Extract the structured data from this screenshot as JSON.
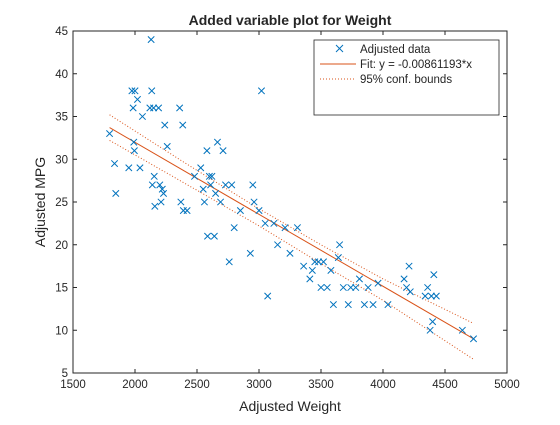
{
  "chart_data": {
    "type": "scatter",
    "title": "Added variable plot for Weight",
    "xlabel": "Adjusted Weight",
    "ylabel": "Adjusted MPG",
    "xlim": [
      1500,
      5000
    ],
    "ylim": [
      5,
      45
    ],
    "xticks": [
      1500,
      2000,
      2500,
      3000,
      3500,
      4000,
      4500,
      5000
    ],
    "yticks": [
      5,
      10,
      15,
      20,
      25,
      30,
      35,
      40,
      45
    ],
    "grid": false,
    "legend_position": "top-right",
    "legend": [
      "Adjusted data",
      "Fit: y = -0.00861193*x",
      "95% conf. bounds"
    ],
    "series": [
      {
        "name": "Adjusted data",
        "kind": "scatter",
        "marker": "x",
        "color": "#0072BD",
        "points": [
          [
            1795,
            33
          ],
          [
            1835,
            29.5
          ],
          [
            1845,
            26
          ],
          [
            1950,
            29
          ],
          [
            1975,
            38
          ],
          [
            1985,
            36
          ],
          [
            1990,
            32
          ],
          [
            1995,
            31
          ],
          [
            2000,
            38
          ],
          [
            2020,
            37
          ],
          [
            2040,
            29
          ],
          [
            2060,
            35
          ],
          [
            2120,
            36
          ],
          [
            2130,
            44
          ],
          [
            2135,
            38
          ],
          [
            2140,
            27
          ],
          [
            2150,
            36
          ],
          [
            2155,
            28
          ],
          [
            2160,
            24.5
          ],
          [
            2190,
            36
          ],
          [
            2200,
            27
          ],
          [
            2210,
            25
          ],
          [
            2220,
            26.5
          ],
          [
            2230,
            26
          ],
          [
            2240,
            34
          ],
          [
            2260,
            31.5
          ],
          [
            2360,
            36
          ],
          [
            2370,
            25
          ],
          [
            2385,
            34
          ],
          [
            2390,
            24
          ],
          [
            2420,
            24
          ],
          [
            2480,
            28
          ],
          [
            2530,
            29
          ],
          [
            2550,
            26.5
          ],
          [
            2560,
            25
          ],
          [
            2580,
            31
          ],
          [
            2585,
            21
          ],
          [
            2600,
            28
          ],
          [
            2610,
            27
          ],
          [
            2620,
            28
          ],
          [
            2640,
            21
          ],
          [
            2650,
            26
          ],
          [
            2665,
            32
          ],
          [
            2690,
            25
          ],
          [
            2710,
            31
          ],
          [
            2730,
            27
          ],
          [
            2760,
            18
          ],
          [
            2780,
            27
          ],
          [
            2800,
            22
          ],
          [
            2850,
            24
          ],
          [
            2930,
            19
          ],
          [
            2950,
            27
          ],
          [
            2960,
            25
          ],
          [
            3000,
            24
          ],
          [
            3020,
            38
          ],
          [
            3050,
            22.5
          ],
          [
            3070,
            14
          ],
          [
            3120,
            22.5
          ],
          [
            3150,
            20
          ],
          [
            3210,
            22
          ],
          [
            3250,
            19
          ],
          [
            3310,
            22
          ],
          [
            3360,
            17.5
          ],
          [
            3410,
            16
          ],
          [
            3430,
            17
          ],
          [
            3450,
            18
          ],
          [
            3480,
            18
          ],
          [
            3500,
            15
          ],
          [
            3520,
            18
          ],
          [
            3550,
            15
          ],
          [
            3580,
            17
          ],
          [
            3600,
            13
          ],
          [
            3640,
            18.5
          ],
          [
            3650,
            20
          ],
          [
            3680,
            15
          ],
          [
            3720,
            13
          ],
          [
            3740,
            15
          ],
          [
            3780,
            15
          ],
          [
            3810,
            16
          ],
          [
            3850,
            13
          ],
          [
            3880,
            15
          ],
          [
            3920,
            13
          ],
          [
            3960,
            15.5
          ],
          [
            4040,
            13
          ],
          [
            4170,
            16
          ],
          [
            4190,
            15
          ],
          [
            4210,
            17.5
          ],
          [
            4220,
            14.5
          ],
          [
            4340,
            14
          ],
          [
            4360,
            15
          ],
          [
            4380,
            10
          ],
          [
            4390,
            14
          ],
          [
            4400,
            11
          ],
          [
            4410,
            16.5
          ],
          [
            4430,
            14
          ],
          [
            4640,
            10
          ],
          [
            4730,
            9
          ]
        ]
      },
      {
        "name": "Fit: y = -0.00861193*x",
        "kind": "line",
        "color": "#D95319",
        "x": [
          1795,
          4730
        ],
        "y": [
          33.7,
          9.0
        ]
      },
      {
        "name": "95% conf. bounds",
        "kind": "dotted-line",
        "color": "#D95319",
        "x": [
          1795,
          2400,
          3000,
          3500,
          4000,
          4730
        ],
        "y_upper": [
          35.2,
          29.6,
          24.2,
          20.0,
          16.0,
          10.8
        ],
        "y_lower": [
          32.2,
          27.2,
          22.2,
          17.8,
          13.5,
          6.6
        ]
      }
    ]
  }
}
